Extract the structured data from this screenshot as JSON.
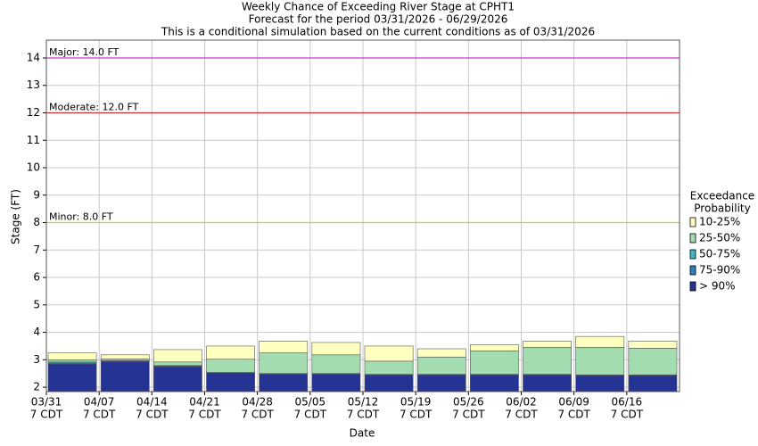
{
  "chart_data": {
    "type": "bar",
    "title": [
      "Weekly Chance of Exceeding River Stage at CPHT1",
      "Forecast for the period 03/31/2026 - 06/29/2026",
      "This is a conditional simulation based on the current conditions as of 03/31/2026"
    ],
    "xlabel": "Date",
    "ylabel": "Stage (FT)",
    "legend_title": [
      "Exceedance",
      "Probability"
    ],
    "categories": [
      [
        "03/31",
        "7 CDT"
      ],
      [
        "04/07",
        "7 CDT"
      ],
      [
        "04/14",
        "7 CDT"
      ],
      [
        "04/21",
        "7 CDT"
      ],
      [
        "04/28",
        "7 CDT"
      ],
      [
        "05/05",
        "7 CDT"
      ],
      [
        "05/12",
        "7 CDT"
      ],
      [
        "05/19",
        "7 CDT"
      ],
      [
        "05/26",
        "7 CDT"
      ],
      [
        "06/02",
        "7 CDT"
      ],
      [
        "06/09",
        "7 CDT"
      ],
      [
        "06/16",
        "7 CDT"
      ]
    ],
    "series": [
      {
        "name": "10-25%",
        "color": "#ffffc0",
        "values": [
          3.25,
          3.18,
          3.37,
          3.5,
          3.68,
          3.63,
          3.5,
          3.4,
          3.55,
          3.68,
          3.85,
          3.68
        ]
      },
      {
        "name": "25-50%",
        "color": "#a3dcb0",
        "values": [
          3.0,
          3.03,
          2.92,
          3.02,
          3.25,
          3.18,
          2.95,
          3.1,
          3.32,
          3.45,
          3.45,
          3.42
        ]
      },
      {
        "name": "50-75%",
        "color": "#41b6c4",
        "values": [
          2.92,
          2.97,
          2.79,
          2.54,
          2.5,
          2.5,
          2.47,
          2.47,
          2.47,
          2.47,
          2.45,
          2.45
        ]
      },
      {
        "name": "75-90%",
        "color": "#2c7fb8",
        "values": [
          2.88,
          2.95,
          2.77,
          2.53,
          2.49,
          2.49,
          2.46,
          2.46,
          2.46,
          2.46,
          2.44,
          2.44
        ]
      },
      {
        "name": "> 90%",
        "color": "#253494",
        "values": [
          2.85,
          2.93,
          2.75,
          2.52,
          2.48,
          2.48,
          2.45,
          2.45,
          2.45,
          2.45,
          2.43,
          2.43
        ]
      }
    ],
    "thresholds": [
      {
        "label": "Major: 14.0 FT",
        "value": 14,
        "color": "#cc33cc"
      },
      {
        "label": "Moderate: 12.0 FT",
        "value": 12,
        "color": "#cc3333"
      },
      {
        "label": "Minor: 8.0 FT",
        "value": 8,
        "color": "#cccc33"
      }
    ],
    "ylim": [
      1.84,
      14.65
    ],
    "yticks": [
      2,
      3,
      4,
      5,
      6,
      7,
      8,
      9,
      10,
      11,
      12,
      13,
      14
    ],
    "grid": true
  }
}
